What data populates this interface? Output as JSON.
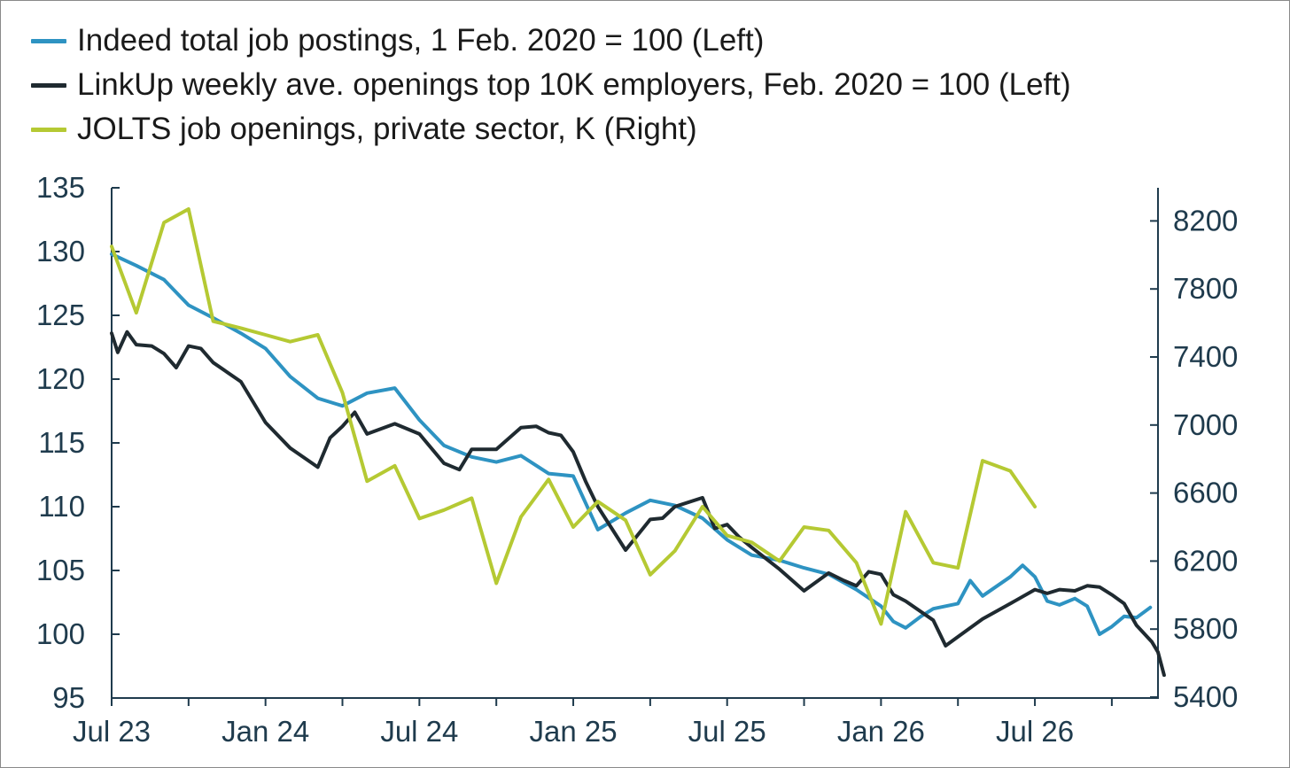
{
  "chart_data": {
    "type": "line",
    "legend": [
      {
        "label": "Indeed total job postings, 1 Feb. 2020 = 100 (Left)",
        "color": "#2e93c2",
        "axis": "left"
      },
      {
        "label": "LinkUp weekly ave. openings top 10K employers, Feb. 2020 = 100 (Left)",
        "color": "#1f2a30",
        "axis": "left"
      },
      {
        "label": "JOLTS job openings, private sector, K (Right)",
        "color": "#b5c933",
        "axis": "right"
      }
    ],
    "x_ticks": [
      "Jul 23",
      "Jan 24",
      "Jul 24",
      "Jan 25",
      "Jul 25",
      "Jan 26",
      "Jul 26"
    ],
    "x_range": [
      2023.5,
      2026.9
    ],
    "y_left": {
      "range": [
        95,
        135
      ],
      "ticks": [
        "95",
        "100",
        "105",
        "110",
        "115",
        "120",
        "125",
        "130",
        "135"
      ]
    },
    "y_right": {
      "range": [
        5400,
        8400
      ],
      "ticks": [
        "5400",
        "5800",
        "6200",
        "6600",
        "7000",
        "7400",
        "7800",
        "8200"
      ]
    },
    "grid": false,
    "series": [
      {
        "name": "Indeed total job postings, 1 Feb. 2020 = 100 (Left)",
        "color": "#2e93c2",
        "axis": "left",
        "points": [
          [
            2023.5,
            129.8
          ],
          [
            2023.58,
            128.9
          ],
          [
            2023.67,
            127.8
          ],
          [
            2023.75,
            125.8
          ],
          [
            2023.83,
            124.8
          ],
          [
            2023.92,
            123.6
          ],
          [
            2024.0,
            122.4
          ],
          [
            2024.08,
            120.2
          ],
          [
            2024.17,
            118.5
          ],
          [
            2024.25,
            117.9
          ],
          [
            2024.33,
            118.9
          ],
          [
            2024.42,
            119.3
          ],
          [
            2024.5,
            116.8
          ],
          [
            2024.58,
            114.8
          ],
          [
            2024.67,
            113.9
          ],
          [
            2024.75,
            113.5
          ],
          [
            2024.83,
            114.0
          ],
          [
            2024.92,
            112.6
          ],
          [
            2025.0,
            112.4
          ],
          [
            2025.08,
            108.2
          ],
          [
            2025.17,
            109.5
          ],
          [
            2025.25,
            110.5
          ],
          [
            2025.33,
            110.1
          ],
          [
            2025.42,
            109.1
          ],
          [
            2025.5,
            107.4
          ],
          [
            2025.58,
            106.2
          ],
          [
            2025.67,
            105.8
          ],
          [
            2025.75,
            105.2
          ],
          [
            2025.83,
            104.7
          ],
          [
            2025.92,
            103.5
          ],
          [
            2026.0,
            102.2
          ],
          [
            2026.04,
            101.0
          ],
          [
            2026.08,
            100.5
          ],
          [
            2026.13,
            101.4
          ],
          [
            2026.17,
            102.0
          ],
          [
            2026.25,
            102.4
          ],
          [
            2026.29,
            104.2
          ],
          [
            2026.33,
            103.0
          ],
          [
            2026.42,
            104.5
          ],
          [
            2026.46,
            105.4
          ],
          [
            2026.5,
            104.5
          ],
          [
            2026.54,
            102.6
          ],
          [
            2026.58,
            102.3
          ],
          [
            2026.63,
            102.8
          ],
          [
            2026.67,
            102.2
          ],
          [
            2026.71,
            100.0
          ],
          [
            2026.75,
            100.6
          ],
          [
            2026.79,
            101.4
          ],
          [
            2026.83,
            101.3
          ],
          [
            2026.875,
            102.1
          ]
        ]
      },
      {
        "name": "LinkUp weekly ave. openings top 10K employers, Feb. 2020 = 100 (Left)",
        "color": "#1f2a30",
        "axis": "left",
        "points": [
          [
            2023.5,
            123.6
          ],
          [
            2023.52,
            122.1
          ],
          [
            2023.55,
            123.7
          ],
          [
            2023.58,
            122.7
          ],
          [
            2023.63,
            122.6
          ],
          [
            2023.67,
            122.0
          ],
          [
            2023.71,
            120.9
          ],
          [
            2023.75,
            122.6
          ],
          [
            2023.79,
            122.4
          ],
          [
            2023.83,
            121.3
          ],
          [
            2023.92,
            119.8
          ],
          [
            2024.0,
            116.6
          ],
          [
            2024.08,
            114.6
          ],
          [
            2024.17,
            113.1
          ],
          [
            2024.21,
            115.4
          ],
          [
            2024.25,
            116.3
          ],
          [
            2024.29,
            117.4
          ],
          [
            2024.33,
            115.7
          ],
          [
            2024.42,
            116.5
          ],
          [
            2024.5,
            115.7
          ],
          [
            2024.58,
            113.4
          ],
          [
            2024.63,
            112.9
          ],
          [
            2024.67,
            114.5
          ],
          [
            2024.75,
            114.5
          ],
          [
            2024.83,
            116.2
          ],
          [
            2024.88,
            116.3
          ],
          [
            2024.92,
            115.8
          ],
          [
            2024.96,
            115.6
          ],
          [
            2025.0,
            114.3
          ],
          [
            2025.04,
            112.0
          ],
          [
            2025.08,
            110.0
          ],
          [
            2025.17,
            106.6
          ],
          [
            2025.25,
            109.0
          ],
          [
            2025.29,
            109.1
          ],
          [
            2025.33,
            110.0
          ],
          [
            2025.42,
            110.7
          ],
          [
            2025.46,
            108.3
          ],
          [
            2025.5,
            108.6
          ],
          [
            2025.54,
            107.6
          ],
          [
            2025.58,
            106.8
          ],
          [
            2025.67,
            105.1
          ],
          [
            2025.75,
            103.4
          ],
          [
            2025.83,
            104.8
          ],
          [
            2025.88,
            104.2
          ],
          [
            2025.92,
            103.8
          ],
          [
            2025.96,
            104.9
          ],
          [
            2026.0,
            104.7
          ],
          [
            2026.04,
            103.1
          ],
          [
            2026.08,
            102.6
          ],
          [
            2026.17,
            101.1
          ],
          [
            2026.21,
            99.1
          ],
          [
            2026.25,
            99.8
          ],
          [
            2026.33,
            101.2
          ],
          [
            2026.42,
            102.4
          ],
          [
            2026.5,
            103.5
          ],
          [
            2026.54,
            103.2
          ],
          [
            2026.58,
            103.5
          ],
          [
            2026.63,
            103.4
          ],
          [
            2026.67,
            103.8
          ],
          [
            2026.71,
            103.7
          ],
          [
            2026.75,
            103.1
          ],
          [
            2026.79,
            102.4
          ],
          [
            2026.83,
            100.7
          ],
          [
            2026.88,
            99.4
          ],
          [
            2026.9,
            98.6
          ],
          [
            2026.92,
            96.8
          ]
        ]
      },
      {
        "name": "JOLTS job openings, private sector, K (Right)",
        "color": "#b5c933",
        "axis": "right",
        "points": [
          [
            2023.5,
            8050
          ],
          [
            2023.58,
            7660
          ],
          [
            2023.67,
            8190
          ],
          [
            2023.75,
            8270
          ],
          [
            2023.83,
            7610
          ],
          [
            2023.92,
            7570
          ],
          [
            2024.0,
            7530
          ],
          [
            2024.08,
            7490
          ],
          [
            2024.17,
            7530
          ],
          [
            2024.25,
            7190
          ],
          [
            2024.33,
            6670
          ],
          [
            2024.42,
            6760
          ],
          [
            2024.5,
            6450
          ],
          [
            2024.58,
            6500
          ],
          [
            2024.67,
            6570
          ],
          [
            2024.75,
            6070
          ],
          [
            2024.83,
            6460
          ],
          [
            2024.92,
            6680
          ],
          [
            2025.0,
            6400
          ],
          [
            2025.08,
            6550
          ],
          [
            2025.17,
            6440
          ],
          [
            2025.25,
            6120
          ],
          [
            2025.33,
            6260
          ],
          [
            2025.42,
            6520
          ],
          [
            2025.5,
            6350
          ],
          [
            2025.58,
            6310
          ],
          [
            2025.67,
            6200
          ],
          [
            2025.75,
            6400
          ],
          [
            2025.83,
            6380
          ],
          [
            2025.92,
            6190
          ],
          [
            2026.0,
            5830
          ],
          [
            2026.08,
            6490
          ],
          [
            2026.17,
            6190
          ],
          [
            2026.25,
            6160
          ],
          [
            2026.33,
            6790
          ],
          [
            2026.42,
            6730
          ],
          [
            2026.5,
            6520
          ]
        ]
      }
    ]
  }
}
